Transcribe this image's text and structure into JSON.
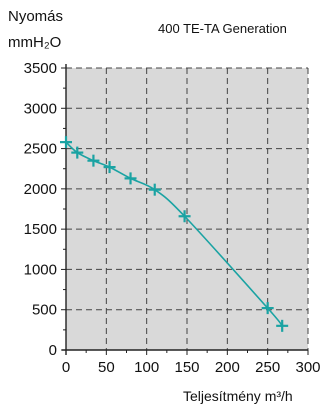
{
  "chart_data": {
    "type": "line",
    "title": "400 TE-TA Generation",
    "ylabel_line1": "Nyomás",
    "ylabel_line2": "mmH₂O",
    "xlabel": "Teljesítmény m³/h",
    "xlim": [
      0,
      300
    ],
    "ylim": [
      0,
      3500
    ],
    "xticks": [
      "0",
      "50",
      "100",
      "150",
      "200",
      "250",
      "300"
    ],
    "yticks": [
      "0",
      "500",
      "1000",
      "1500",
      "2000",
      "2500",
      "3000",
      "3500"
    ],
    "grid": true,
    "colors": {
      "series": "#1aa3a3",
      "plot_background": "#d9d9d9",
      "grid": "#444444"
    },
    "series": [
      {
        "x": [
          0,
          14,
          34,
          54,
          80,
          110,
          147,
          250,
          268
        ],
        "y": [
          2580,
          2450,
          2350,
          2270,
          2130,
          1990,
          1660,
          520,
          300
        ]
      }
    ]
  }
}
